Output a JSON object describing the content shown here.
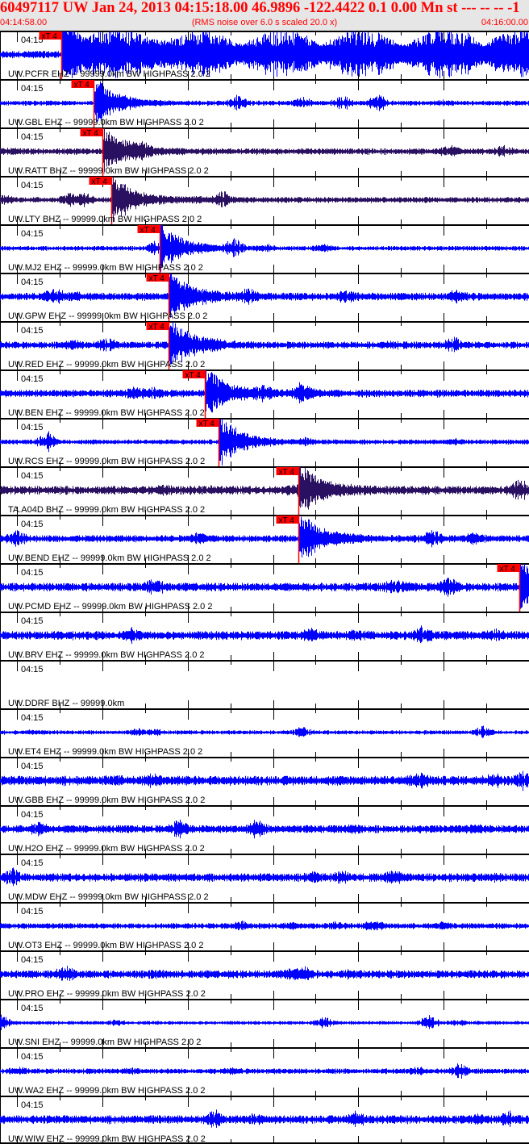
{
  "header": {
    "title": "60497117 UW Jan 24, 2013 04:15:18.00   46.9896 -122.4422  0.1 0.00 Mn st --- -- --  -1",
    "start_time": "04:14:58.00",
    "note": "(RMS noise over 6.0 s scaled 20.0 x)",
    "end_time": "04:16:00.00"
  },
  "chart_data": {
    "type": "line",
    "title": "60497117 UW Jan 24, 2013 04:15:18.00",
    "x_range_seconds_after_start": [
      0,
      62
    ],
    "x_start": "04:14:58.00",
    "x_end": "04:16:00.00",
    "minute_label": "04:15",
    "pick_label": "xT 4",
    "colors": {
      "trace": "#0000ff",
      "broadband": "#2a1060",
      "pick": "#ff0000",
      "header_bg": "#e6e6e6"
    },
    "traces": [
      {
        "label": "UW.PCFR EHZ -- 99999.0km BW  HIGHPASS  2.0  2",
        "pick": 7.2,
        "color": "#0000ff"
      },
      {
        "label": "UW.GBL EHZ -- 99999.0km BW  HIGHPASS  2.0  2",
        "pick": 11.0,
        "color": "#0000ff"
      },
      {
        "label": "UW.RATT BHZ -- 99999.0km BW  HIGHPASS  2.0  2",
        "pick": 12.0,
        "color": "#2a1060"
      },
      {
        "label": "UW.LTY BHZ -- 99999.0km BW  HIGHPASS  2.0  2",
        "pick": 13.0,
        "color": "#2a1060"
      },
      {
        "label": "UW.MJ2 EHZ -- 99999.0km BW  HIGHPASS  2.0  2",
        "pick": 18.7,
        "color": "#0000ff"
      },
      {
        "label": "UW.GPW EHZ -- 99999.0km BW  HIGHPASS  2.0  2",
        "pick": 19.8,
        "color": "#0000ff"
      },
      {
        "label": "UW.RED EHZ -- 99999.0km BW  HIGHPASS  2.0  2",
        "pick": 19.8,
        "color": "#0000ff"
      },
      {
        "label": "UW.BEN EHZ -- 99999.0km BW  HIGHPASS  2.0  2",
        "pick": 24.0,
        "color": "#0000ff"
      },
      {
        "label": "UW.RCS EHZ -- 99999.0km BW  HIGHPASS  2.0  2",
        "pick": 25.6,
        "color": "#0000ff"
      },
      {
        "label": "TA.A04D BHZ -- 99999.0km BW  HIGHPASS  2.0  2",
        "pick": 35.0,
        "color": "#2a1060"
      },
      {
        "label": "UW.BEND EHZ -- 99999.0km BW  HIGHPASS  2.0  2",
        "pick": 35.0,
        "color": "#0000ff"
      },
      {
        "label": "UW.PCMD EHZ -- 99999.0km BW  HIGHPASS  2.0  2",
        "pick": 60.9,
        "color": "#0000ff"
      },
      {
        "label": "UW.BRV EHZ -- 99999.0km BW  HIGHPASS  2.0  2",
        "pick": null,
        "color": "#0000ff"
      },
      {
        "label": "UW.DDRF BHZ -- 99999.0km",
        "pick": null,
        "color": null
      },
      {
        "label": "UW.ET4 EHZ -- 99999.0km BW  HIGHPASS  2.0  2",
        "pick": null,
        "color": "#0000ff"
      },
      {
        "label": "UW.GBB EHZ -- 99999.0km BW  HIGHPASS  2.0  2",
        "pick": null,
        "color": "#0000ff"
      },
      {
        "label": "UW.H2O EHZ -- 99999.0km BW  HIGHPASS  2.0  2",
        "pick": null,
        "color": "#0000ff"
      },
      {
        "label": "UW.MDW EHZ -- 99999.0km BW  HIGHPASS  2.0  2",
        "pick": null,
        "color": "#0000ff"
      },
      {
        "label": "UW.OT3 EHZ -- 99999.0km BW  HIGHPASS  2.0  2",
        "pick": null,
        "color": "#0000ff"
      },
      {
        "label": "UW.PRO EHZ -- 99999.0km BW  HIGHPASS  2.0  2",
        "pick": null,
        "color": "#0000ff"
      },
      {
        "label": "UW.SNI EHZ -- 99999.0km BW  HIGHPASS  2.0  2",
        "pick": null,
        "color": "#0000ff"
      },
      {
        "label": "UW.WA2 EHZ -- 99999.0km BW  HIGHPASS  2.0  2",
        "pick": null,
        "color": "#0000ff"
      },
      {
        "label": "UW.WIW EHZ -- 99999.0km BW  HIGHPASS  2.0  2",
        "pick": null,
        "color": "#0000ff"
      }
    ]
  }
}
